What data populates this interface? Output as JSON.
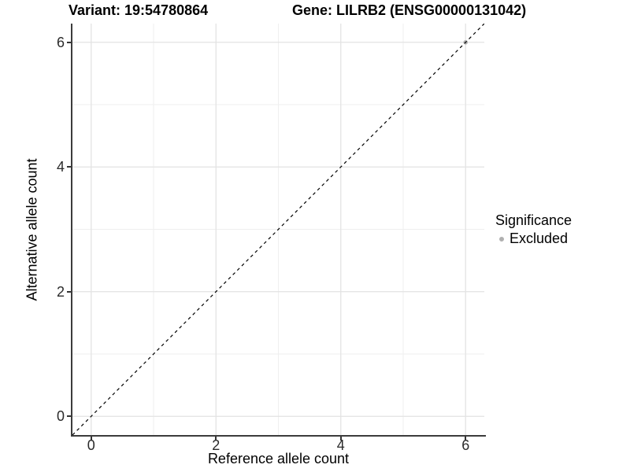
{
  "colors": {
    "background": "#ffffff",
    "grid_major": "#e3e3e3",
    "grid_minor": "#efefef",
    "axis_line": "#3c3c3c",
    "tick_mark": "#333333",
    "point": "#b0b0b0",
    "dashed_line": "#000000"
  },
  "chart_data": {
    "type": "scatter",
    "titles": [
      "Variant: 19:54780864",
      "Gene: LILRB2 (ENSG00000131042)"
    ],
    "xlabel": "Reference allele count",
    "ylabel": "Alternative allele count",
    "xlim": [
      -0.3,
      6.3
    ],
    "ylim": [
      -0.3,
      6.3
    ],
    "x_ticks": [
      0,
      2,
      4,
      6
    ],
    "y_ticks": [
      0,
      2,
      4,
      6
    ],
    "x_minor_ticks": [
      1,
      3,
      5
    ],
    "y_minor_ticks": [
      1,
      3,
      5
    ],
    "grid": true,
    "reference_line": {
      "type": "identity",
      "slope": 1,
      "intercept": 0,
      "style": "dashed",
      "color": "#000000"
    },
    "series": [
      {
        "name": "Excluded",
        "color": "#b0b0b0",
        "marker": "circle",
        "points": [
          [
            6,
            6
          ]
        ]
      }
    ],
    "legend": {
      "title": "Significance",
      "position": "right",
      "entries": [
        {
          "label": "Excluded",
          "color": "#b0b0b0",
          "marker": "circle"
        }
      ]
    }
  }
}
